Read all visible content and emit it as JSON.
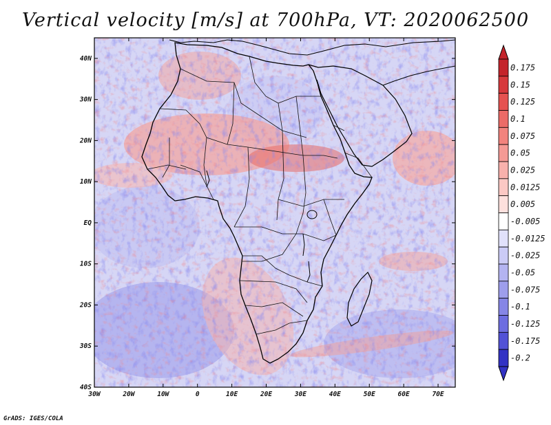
{
  "title": "Vertical velocity [m/s] at 700hPa, VT: 2020062500",
  "credit": "GrADS: IGES/COLA",
  "chart_data": {
    "type": "heatmap",
    "variable": "Vertical velocity",
    "units": "m/s",
    "level": "700hPa",
    "valid_time": "2020062500",
    "lon_range": [
      -30,
      75
    ],
    "lat_range": [
      -40,
      45
    ],
    "x_ticks": [
      {
        "value": -30,
        "label": "30W"
      },
      {
        "value": -20,
        "label": "20W"
      },
      {
        "value": -10,
        "label": "10W"
      },
      {
        "value": 0,
        "label": "0"
      },
      {
        "value": 10,
        "label": "10E"
      },
      {
        "value": 20,
        "label": "20E"
      },
      {
        "value": 30,
        "label": "30E"
      },
      {
        "value": 40,
        "label": "40E"
      },
      {
        "value": 50,
        "label": "50E"
      },
      {
        "value": 60,
        "label": "60E"
      },
      {
        "value": 70,
        "label": "70E"
      }
    ],
    "y_ticks": [
      {
        "value": 40,
        "label": "40N"
      },
      {
        "value": 30,
        "label": "30N"
      },
      {
        "value": 20,
        "label": "20N"
      },
      {
        "value": 10,
        "label": "10N"
      },
      {
        "value": 0,
        "label": "EQ"
      },
      {
        "value": -10,
        "label": "10S"
      },
      {
        "value": -20,
        "label": "20S"
      },
      {
        "value": -30,
        "label": "30S"
      },
      {
        "value": -40,
        "label": "40S"
      }
    ],
    "colorbar": [
      {
        "label": "0.175",
        "color": "#c4242b"
      },
      {
        "label": "0.15",
        "color": "#d7393c"
      },
      {
        "label": "0.125",
        "color": "#e55250"
      },
      {
        "label": "0.1",
        "color": "#ec6b67"
      },
      {
        "label": "0.075",
        "color": "#f2837d"
      },
      {
        "label": "0.05",
        "color": "#f59a95"
      },
      {
        "label": "0.025",
        "color": "#f8b1ac"
      },
      {
        "label": "0.0125",
        "color": "#fbc8c4"
      },
      {
        "label": "0.005",
        "color": "#fde0dd"
      },
      {
        "label": "-0.005",
        "color": "#ffffff"
      },
      {
        "label": "-0.0125",
        "color": "#e1e1fb"
      },
      {
        "label": "-0.025",
        "color": "#cbcbf6"
      },
      {
        "label": "-0.05",
        "color": "#b4b4f1"
      },
      {
        "label": "-0.075",
        "color": "#9e9eec"
      },
      {
        "label": "-0.1",
        "color": "#8686e6"
      },
      {
        "label": "-0.125",
        "color": "#6d6de0"
      },
      {
        "label": "-0.175",
        "color": "#5252d6"
      },
      {
        "label": "-0.2",
        "color": "#3232c4"
      }
    ],
    "extend": "both"
  }
}
